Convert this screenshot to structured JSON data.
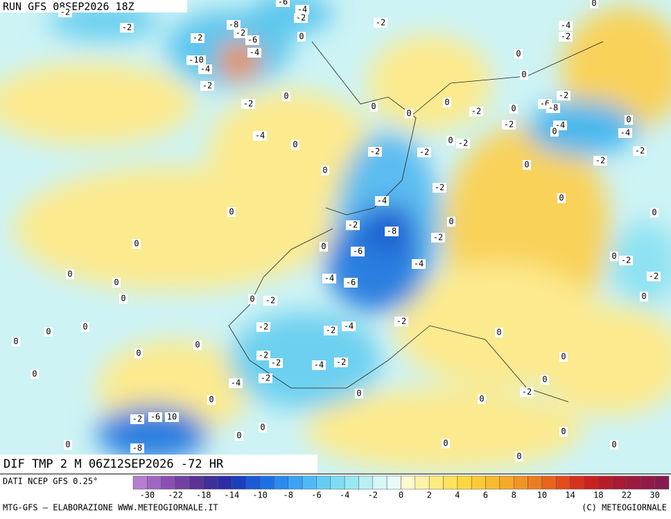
{
  "header": {
    "run": "RUN GFS 08SEP2026 18Z"
  },
  "map": {
    "title": "DIF TMP 2 M 06Z12SEP2026 -72 HR",
    "labels": [
      -2,
      -2,
      -2,
      -8,
      -2,
      -6,
      -4,
      -10,
      -4,
      -2,
      -6,
      -4,
      -2,
      0,
      -2,
      -4,
      -2,
      0,
      0,
      0,
      -2,
      -4,
      0,
      0,
      0,
      0,
      -2,
      0,
      -6,
      -8,
      -2,
      -2,
      -4,
      0,
      0,
      -4,
      -2,
      -2,
      0,
      0,
      -2,
      -2,
      -2,
      0,
      -2,
      -4,
      0,
      0,
      0,
      -2,
      -8,
      0,
      -2,
      0,
      -6,
      0,
      0,
      -2,
      -4,
      0,
      0,
      -4,
      -6,
      -2,
      0,
      0,
      -2,
      0,
      -2,
      -2,
      -4,
      -2,
      0,
      0,
      0,
      0,
      0,
      0,
      -2,
      -2,
      -4,
      -2,
      0,
      0,
      -4,
      -2,
      0,
      -2,
      0,
      0,
      0,
      -2,
      -6,
      10,
      0,
      0,
      -8,
      0,
      0,
      0,
      0,
      0,
      0
    ]
  },
  "colorbar": {
    "source": "DATI NCEP GFS 0.25°",
    "colors": [
      "#b57fd0",
      "#a066c4",
      "#8a4fb5",
      "#7440a3",
      "#5b3394",
      "#3e2f9a",
      "#2a2fa8",
      "#1a3fc0",
      "#1a5ad8",
      "#1d70e8",
      "#2a8af0",
      "#3aa3f5",
      "#4fbaf7",
      "#63cdf5",
      "#7ddcf3",
      "#9ae8f2",
      "#b8f0f4",
      "#d6f7f8",
      "#eafbfb",
      "#fff9cc",
      "#fff3a8",
      "#ffec7f",
      "#ffe45c",
      "#fcd83e",
      "#fbca35",
      "#f8ba2f",
      "#f5a82a",
      "#f29426",
      "#ee7d22",
      "#e9641e",
      "#e34a1c",
      "#d8321c",
      "#c8221f",
      "#b81c2a",
      "#a81a35",
      "#9c1a40",
      "#901a48",
      "#861a50"
    ],
    "ticks": [
      -30,
      -22,
      -18,
      -14,
      -10,
      -8,
      -6,
      -4,
      -2,
      0,
      2,
      4,
      6,
      8,
      10,
      14,
      18,
      22,
      30
    ]
  },
  "footer": {
    "left": "MTG-GFS — ELABORAZIONE WWW.METEOGIORNALE.IT",
    "right": "(C) METEOGIORNALE"
  }
}
